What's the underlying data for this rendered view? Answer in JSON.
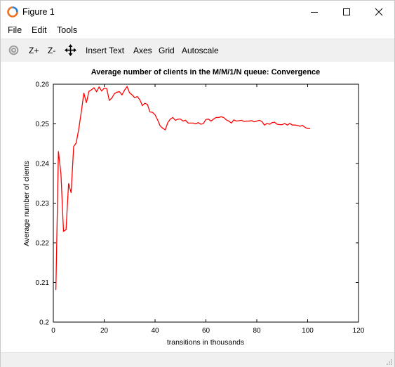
{
  "window": {
    "title": "Figure 1"
  },
  "menu": {
    "items": [
      "File",
      "Edit",
      "Tools"
    ]
  },
  "toolbar": {
    "zoom_in": "Z+",
    "zoom_out": "Z-",
    "insert_text": "Insert Text",
    "axes": "Axes",
    "grid": "Grid",
    "autoscale": "Autoscale"
  },
  "icons": {
    "app": "octave-logo-icon",
    "rotate": "rotate-icon",
    "pan": "pan-arrows-icon",
    "minimize": "minimize-icon",
    "maximize": "maximize-icon",
    "close": "close-icon"
  },
  "colors": {
    "line": "#ff0000",
    "toolbar_bg": "#f0f0f0"
  },
  "chart_data": {
    "type": "line",
    "title": "Average number of clients in the M/M/1/N queue: Convergence",
    "xlabel": "transitions in thousands",
    "ylabel": "Average number of clients",
    "xlim": [
      0,
      120
    ],
    "ylim": [
      0.2,
      0.26
    ],
    "xticks": [
      0,
      20,
      40,
      60,
      80,
      100,
      120
    ],
    "yticks": [
      0.2,
      0.21,
      0.22,
      0.23,
      0.24,
      0.25,
      0.26
    ],
    "ytick_labels": [
      "0.2",
      "0.21",
      "0.22",
      "0.23",
      "0.24",
      "0.25",
      "0.26"
    ],
    "grid": false,
    "series": [
      {
        "color": "#ff0000",
        "x": [
          1,
          2,
          3,
          4,
          5,
          6,
          7,
          8,
          9,
          10,
          11,
          12,
          13,
          14,
          15,
          16,
          17,
          18,
          19,
          20,
          21,
          22,
          23,
          24,
          25,
          26,
          27,
          28,
          29,
          30,
          31,
          32,
          33,
          34,
          35,
          36,
          37,
          38,
          39,
          40,
          41,
          42,
          43,
          44,
          45,
          46,
          47,
          48,
          49,
          50,
          51,
          52,
          53,
          54,
          55,
          56,
          57,
          58,
          59,
          60,
          61,
          62,
          63,
          64,
          65,
          66,
          67,
          68,
          69,
          70,
          71,
          72,
          73,
          74,
          75,
          76,
          77,
          78,
          79,
          80,
          81,
          82,
          83,
          84,
          85,
          86,
          87,
          88,
          89,
          90,
          91,
          92,
          93,
          94,
          95,
          96,
          97,
          98,
          99,
          100,
          101
        ],
        "y": [
          0.2081,
          0.2431,
          0.2373,
          0.2229,
          0.2233,
          0.235,
          0.2326,
          0.2443,
          0.2452,
          0.2487,
          0.253,
          0.2578,
          0.2553,
          0.2582,
          0.2586,
          0.2591,
          0.2581,
          0.2593,
          0.2583,
          0.259,
          0.2589,
          0.2559,
          0.2565,
          0.2576,
          0.258,
          0.2581,
          0.2573,
          0.2585,
          0.2594,
          0.2578,
          0.2573,
          0.2566,
          0.2569,
          0.2561,
          0.2546,
          0.2552,
          0.2549,
          0.253,
          0.2529,
          0.2523,
          0.251,
          0.2495,
          0.2489,
          0.2485,
          0.2503,
          0.2512,
          0.2516,
          0.2509,
          0.2512,
          0.2512,
          0.2507,
          0.2509,
          0.2502,
          0.2502,
          0.2502,
          0.25,
          0.2503,
          0.2499,
          0.2501,
          0.2511,
          0.2512,
          0.2507,
          0.2512,
          0.2516,
          0.2516,
          0.2518,
          0.2516,
          0.251,
          0.2507,
          0.2502,
          0.251,
          0.2507,
          0.2508,
          0.2509,
          0.2506,
          0.2507,
          0.2507,
          0.2508,
          0.2505,
          0.2507,
          0.2509,
          0.2506,
          0.2497,
          0.2501,
          0.2499,
          0.2503,
          0.2504,
          0.2499,
          0.2498,
          0.2498,
          0.2501,
          0.2497,
          0.2501,
          0.2497,
          0.2497,
          0.2496,
          0.2494,
          0.2496,
          0.2491,
          0.2488,
          0.2488
        ]
      }
    ]
  }
}
